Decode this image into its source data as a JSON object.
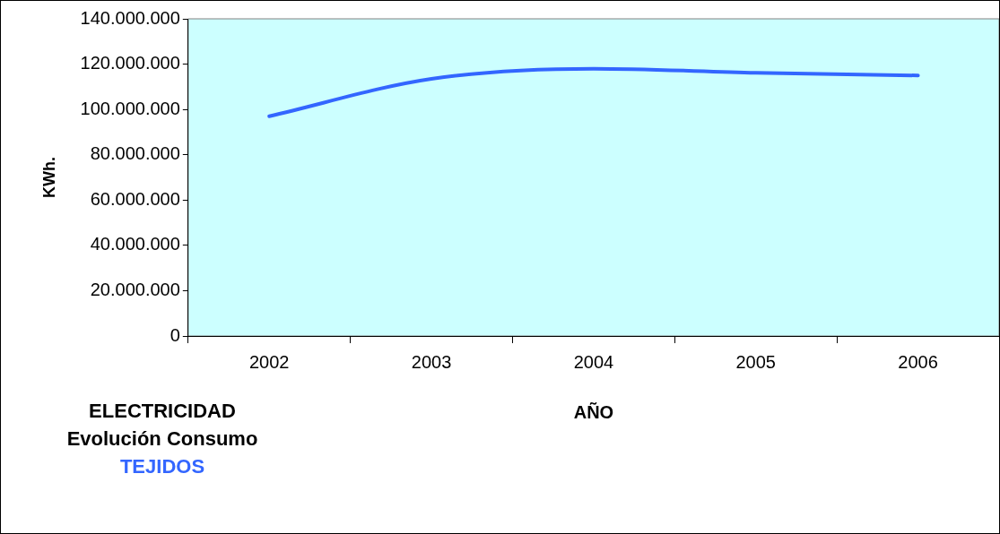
{
  "chart_data": {
    "type": "line",
    "title": "ELECTRICIDAD\nEvolución Consumo",
    "subtitle": "TEJIDOS",
    "xlabel": "AÑO",
    "ylabel": "KWh.",
    "categories": [
      "2002",
      "2003",
      "2004",
      "2005",
      "2006"
    ],
    "series": [
      {
        "color": "#3366ff",
        "values": [
          97000000,
          113500000,
          118000000,
          116200000,
          115000000
        ]
      }
    ],
    "ylim": [
      0,
      140000000
    ],
    "yticks": [
      {
        "value": 0,
        "label": "0"
      },
      {
        "value": 20000000,
        "label": "20.000.000"
      },
      {
        "value": 40000000,
        "label": "40.000.000"
      },
      {
        "value": 60000000,
        "label": "60.000.000"
      },
      {
        "value": 80000000,
        "label": "80.000.000"
      },
      {
        "value": 100000000,
        "label": "100.000.000"
      },
      {
        "value": 120000000,
        "label": "120.000.000"
      },
      {
        "value": 140000000,
        "label": "140.000.000"
      }
    ],
    "grid": false,
    "legend": false,
    "marker": "none",
    "line_style": "solid"
  }
}
